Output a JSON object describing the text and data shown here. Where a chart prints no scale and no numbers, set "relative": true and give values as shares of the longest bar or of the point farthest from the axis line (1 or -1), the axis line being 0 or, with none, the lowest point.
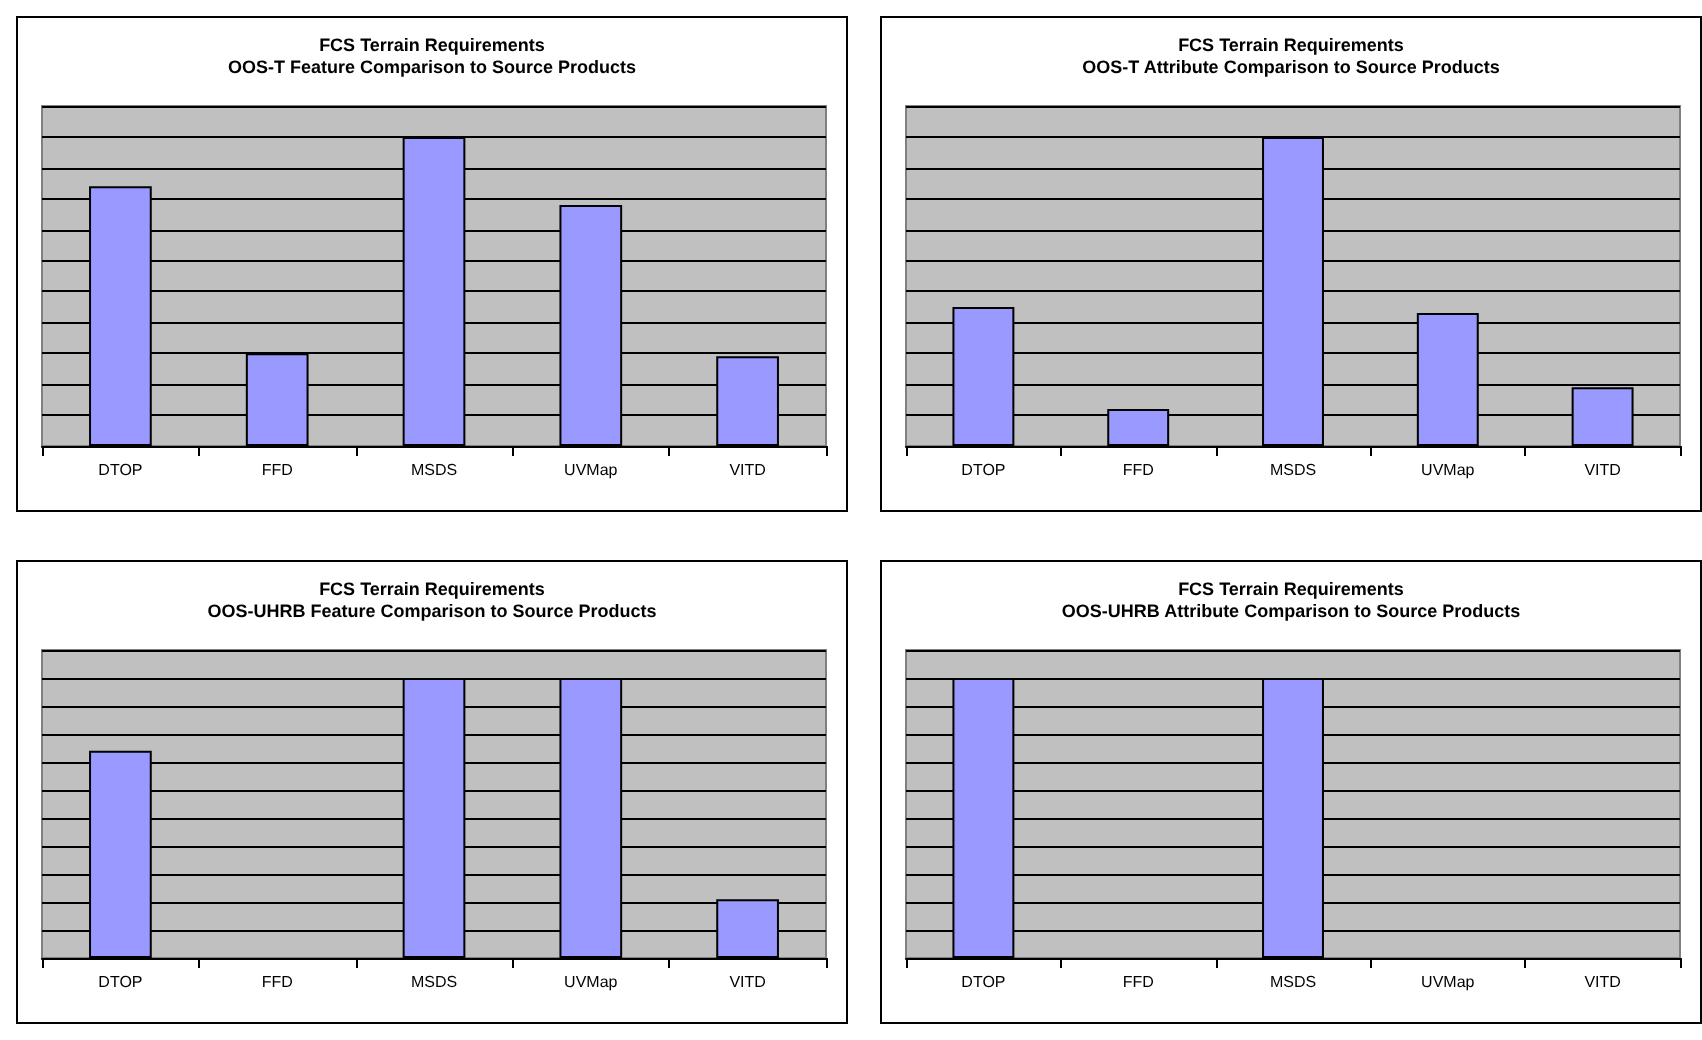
{
  "chart_data": [
    {
      "type": "bar",
      "title": "FCS Terrain Requirements",
      "subtitle": "OOS-T Feature Comparison to Source Products",
      "categories": [
        "DTOP",
        "FFD",
        "MSDS",
        "UVMap",
        "VITD"
      ],
      "relative": true,
      "grid": "y",
      "series": [
        {
          "color": "#9999ff",
          "values": [
            0.84,
            0.3,
            1,
            0.78,
            0.29
          ]
        }
      ]
    },
    {
      "type": "bar",
      "title": "FCS Terrain Requirements",
      "subtitle": "OOS-T Attribute Comparison to Source Products",
      "categories": [
        "DTOP",
        "FFD",
        "MSDS",
        "UVMap",
        "VITD"
      ],
      "relative": true,
      "grid": "y",
      "series": [
        {
          "color": "#9999ff",
          "values": [
            0.45,
            0.12,
            1,
            0.43,
            0.19
          ]
        }
      ]
    },
    {
      "type": "bar",
      "title": "FCS Terrain Requirements",
      "subtitle": "OOS-UHRB Feature Comparison to Source Products",
      "categories": [
        "DTOP",
        "FFD",
        "MSDS",
        "UVMap",
        "VITD"
      ],
      "relative": true,
      "grid": "y",
      "series": [
        {
          "color": "#9999ff",
          "values": [
            0.74,
            0,
            1,
            1,
            0.21
          ]
        }
      ]
    },
    {
      "type": "bar",
      "title": "FCS Terrain Requirements",
      "subtitle": "OOS-UHRB Attribute Comparison to Source Products",
      "categories": [
        "DTOP",
        "FFD",
        "MSDS",
        "UVMap",
        "VITD"
      ],
      "relative": true,
      "grid": "y",
      "series": [
        {
          "color": "#9999ff",
          "values": [
            1,
            0,
            1,
            0,
            0
          ]
        }
      ]
    }
  ]
}
